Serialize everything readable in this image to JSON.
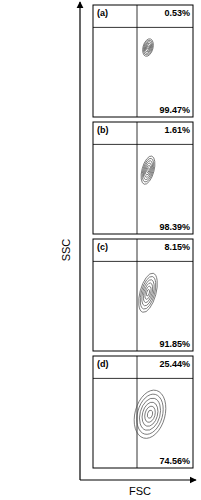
{
  "chart_data": {
    "type": "contour",
    "x_label": "FSC",
    "y_label": "SSC",
    "tick_labels": false,
    "xlim": [
      0,
      100
    ],
    "ylim": [
      0,
      100
    ],
    "panels": [
      {
        "label": "(a)",
        "gate": {
          "x": 44,
          "y": 80
        },
        "values": [
          0.53,
          99.47
        ],
        "value_labels": [
          "0.53%",
          "99.47%"
        ],
        "population": {
          "x": 55,
          "y": 62,
          "x_spread": 10,
          "y_spread": 16
        }
      },
      {
        "label": "(b)",
        "gate": {
          "x": 44,
          "y": 80
        },
        "values": [
          1.61,
          98.39
        ],
        "value_labels": [
          "1.61%",
          "98.39%"
        ],
        "population": {
          "x": 55,
          "y": 57,
          "x_spread": 12,
          "y_spread": 26
        }
      },
      {
        "label": "(c)",
        "gate": {
          "x": 44,
          "y": 80
        },
        "values": [
          8.15,
          91.85
        ],
        "value_labels": [
          "8.15%",
          "91.85%"
        ],
        "population": {
          "x": 55,
          "y": 52,
          "x_spread": 16,
          "y_spread": 36
        }
      },
      {
        "label": "(d)",
        "gate": {
          "x": 44,
          "y": 80
        },
        "values": [
          25.44,
          74.56
        ],
        "value_labels": [
          "25.44%",
          "74.56%"
        ],
        "population": {
          "x": 57,
          "y": 48,
          "x_spread": 30,
          "y_spread": 44
        }
      }
    ]
  }
}
